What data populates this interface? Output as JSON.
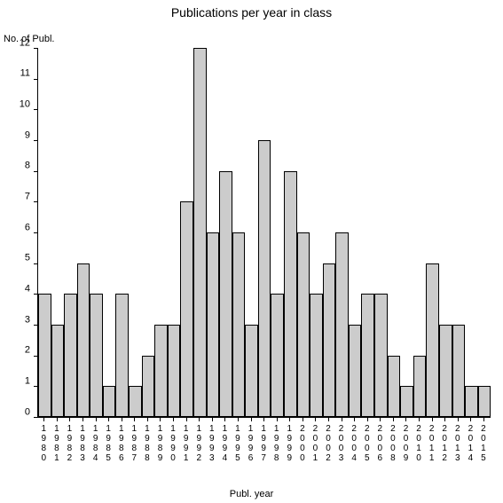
{
  "chart": {
    "type": "bar",
    "title": "Publications per year in class",
    "title_fontsize": 14,
    "y_axis_label": "No. of Publ.",
    "x_axis_label": "Publ. year",
    "label_fontsize": 11,
    "tick_fontsize": 11,
    "background_color": "#ffffff",
    "bar_fill": "#cccccc",
    "bar_border": "#000000",
    "axis_color": "#000000",
    "text_color": "#000000",
    "ylim": [
      0,
      12
    ],
    "ytick_step": 1,
    "yticks": [
      0,
      1,
      2,
      3,
      4,
      5,
      6,
      7,
      8,
      9,
      10,
      11,
      12
    ],
    "categories": [
      "1980",
      "1981",
      "1982",
      "1983",
      "1984",
      "1985",
      "1986",
      "1987",
      "1988",
      "1989",
      "1990",
      "1991",
      "1992",
      "1993",
      "1994",
      "1995",
      "1996",
      "1997",
      "1998",
      "1999",
      "2000",
      "2001",
      "2002",
      "2003",
      "2004",
      "2005",
      "2006",
      "2008",
      "2009",
      "2010",
      "2011",
      "2012",
      "2013",
      "2014",
      "2015"
    ],
    "values": [
      4,
      3,
      4,
      5,
      4,
      1,
      4,
      1,
      2,
      3,
      3,
      7,
      12,
      6,
      8,
      6,
      3,
      9,
      4,
      8,
      6,
      4,
      5,
      6,
      3,
      4,
      4,
      2,
      1,
      2,
      5,
      3,
      3,
      1,
      1
    ],
    "bar_width": 1.0
  }
}
